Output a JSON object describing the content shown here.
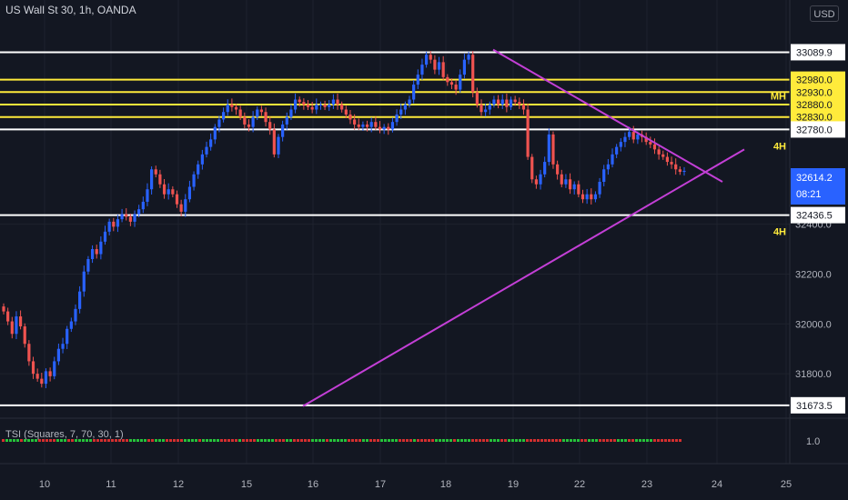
{
  "header": {
    "title": "US Wall St 30, 1h, OANDA",
    "currency": "USD"
  },
  "indicator": {
    "label": "TSI (Squares, 7, 70, 30, 1)",
    "axis_label": "1.0"
  },
  "colors": {
    "background": "#131722",
    "grid": "#1e222d",
    "up_candle": "#2962ff",
    "down_candle": "#ef5350",
    "white_level": "#ffffff",
    "yellow_level": "#ffeb3b",
    "trendline": "#c33fd6",
    "tsi_up": "#26c23a",
    "tsi_down": "#d32f2f"
  },
  "chart_data": {
    "type": "candlestick",
    "title": "US Wall St 30, 1h, OANDA",
    "ylim": [
      31640,
      33190
    ],
    "y_ticks": [
      31800,
      32000,
      32200,
      32400
    ],
    "x_ticks": [
      "10",
      "11",
      "12",
      "15",
      "16",
      "17",
      "18",
      "19",
      "22",
      "23",
      "24",
      "25"
    ],
    "last_price": {
      "value": "32614.2",
      "countdown": "08:21"
    },
    "levels": [
      {
        "price": 33089.9,
        "label": "33089.9",
        "color": "white",
        "tag": ""
      },
      {
        "price": 32980.0,
        "label": "32980.0",
        "color": "yellow",
        "tag": "MH"
      },
      {
        "price": 32930.0,
        "label": "32930.0",
        "color": "yellow",
        "tag": ""
      },
      {
        "price": 32880.0,
        "label": "32880.0",
        "color": "yellow",
        "tag": ""
      },
      {
        "price": 32830.0,
        "label": "32830.0",
        "color": "yellow",
        "tag": ""
      },
      {
        "price": 32780.0,
        "label": "32780.0",
        "color": "white",
        "tag": "4H"
      },
      {
        "price": 32436.5,
        "label": "32436.5",
        "color": "white",
        "tag": "4H"
      },
      {
        "price": 31673.5,
        "label": "31673.5",
        "color": "white",
        "tag": ""
      }
    ],
    "trendlines": [
      {
        "name": "resistance",
        "from": [
          "18.7",
          33100
        ],
        "to": [
          "23.9",
          32570
        ]
      },
      {
        "name": "support",
        "from": [
          "15.8",
          31670
        ],
        "to": [
          "24.4",
          32700
        ]
      }
    ],
    "close_series": [
      32050,
      32010,
      31960,
      32030,
      31990,
      31920,
      31850,
      31800,
      31780,
      31760,
      31810,
      31790,
      31850,
      31900,
      31920,
      31980,
      32010,
      32060,
      32130,
      32210,
      32260,
      32300,
      32280,
      32330,
      32370,
      32410,
      32390,
      32420,
      32440,
      32430,
      32410,
      32440,
      32460,
      32490,
      32540,
      32620,
      32600,
      32560,
      32520,
      32540,
      32520,
      32480,
      32450,
      32500,
      32550,
      32600,
      32640,
      32680,
      32710,
      32740,
      32790,
      32820,
      32850,
      32880,
      32870,
      32860,
      32830,
      32800,
      32790,
      32830,
      32860,
      32850,
      32810,
      32780,
      32680,
      32750,
      32800,
      32830,
      32860,
      32900,
      32890,
      32880,
      32870,
      32860,
      32880,
      32880,
      32870,
      32880,
      32900,
      32880,
      32860,
      32840,
      32820,
      32800,
      32790,
      32800,
      32790,
      32810,
      32790,
      32780,
      32790,
      32780,
      32810,
      32840,
      32860,
      32880,
      32900,
      32960,
      33000,
      33040,
      33080,
      33060,
      33020,
      33050,
      32990,
      32970,
      32960,
      32940,
      33000,
      33060,
      33080,
      32930,
      32880,
      32850,
      32860,
      32880,
      32900,
      32880,
      32900,
      32870,
      32900,
      32890,
      32880,
      32860,
      32670,
      32580,
      32560,
      32600,
      32650,
      32760,
      32640,
      32600,
      32560,
      32580,
      32540,
      32560,
      32520,
      32500,
      32520,
      32500,
      32520,
      32570,
      32620,
      32640,
      32680,
      32710,
      32730,
      32750,
      32770,
      32740,
      32760,
      32750,
      32730,
      32720,
      32700,
      32680,
      32670,
      32650,
      32640,
      32620,
      32610,
      32614
    ],
    "tsi_squares": "up-down alternating sequence along time axis (green=positive, red=negative)"
  }
}
